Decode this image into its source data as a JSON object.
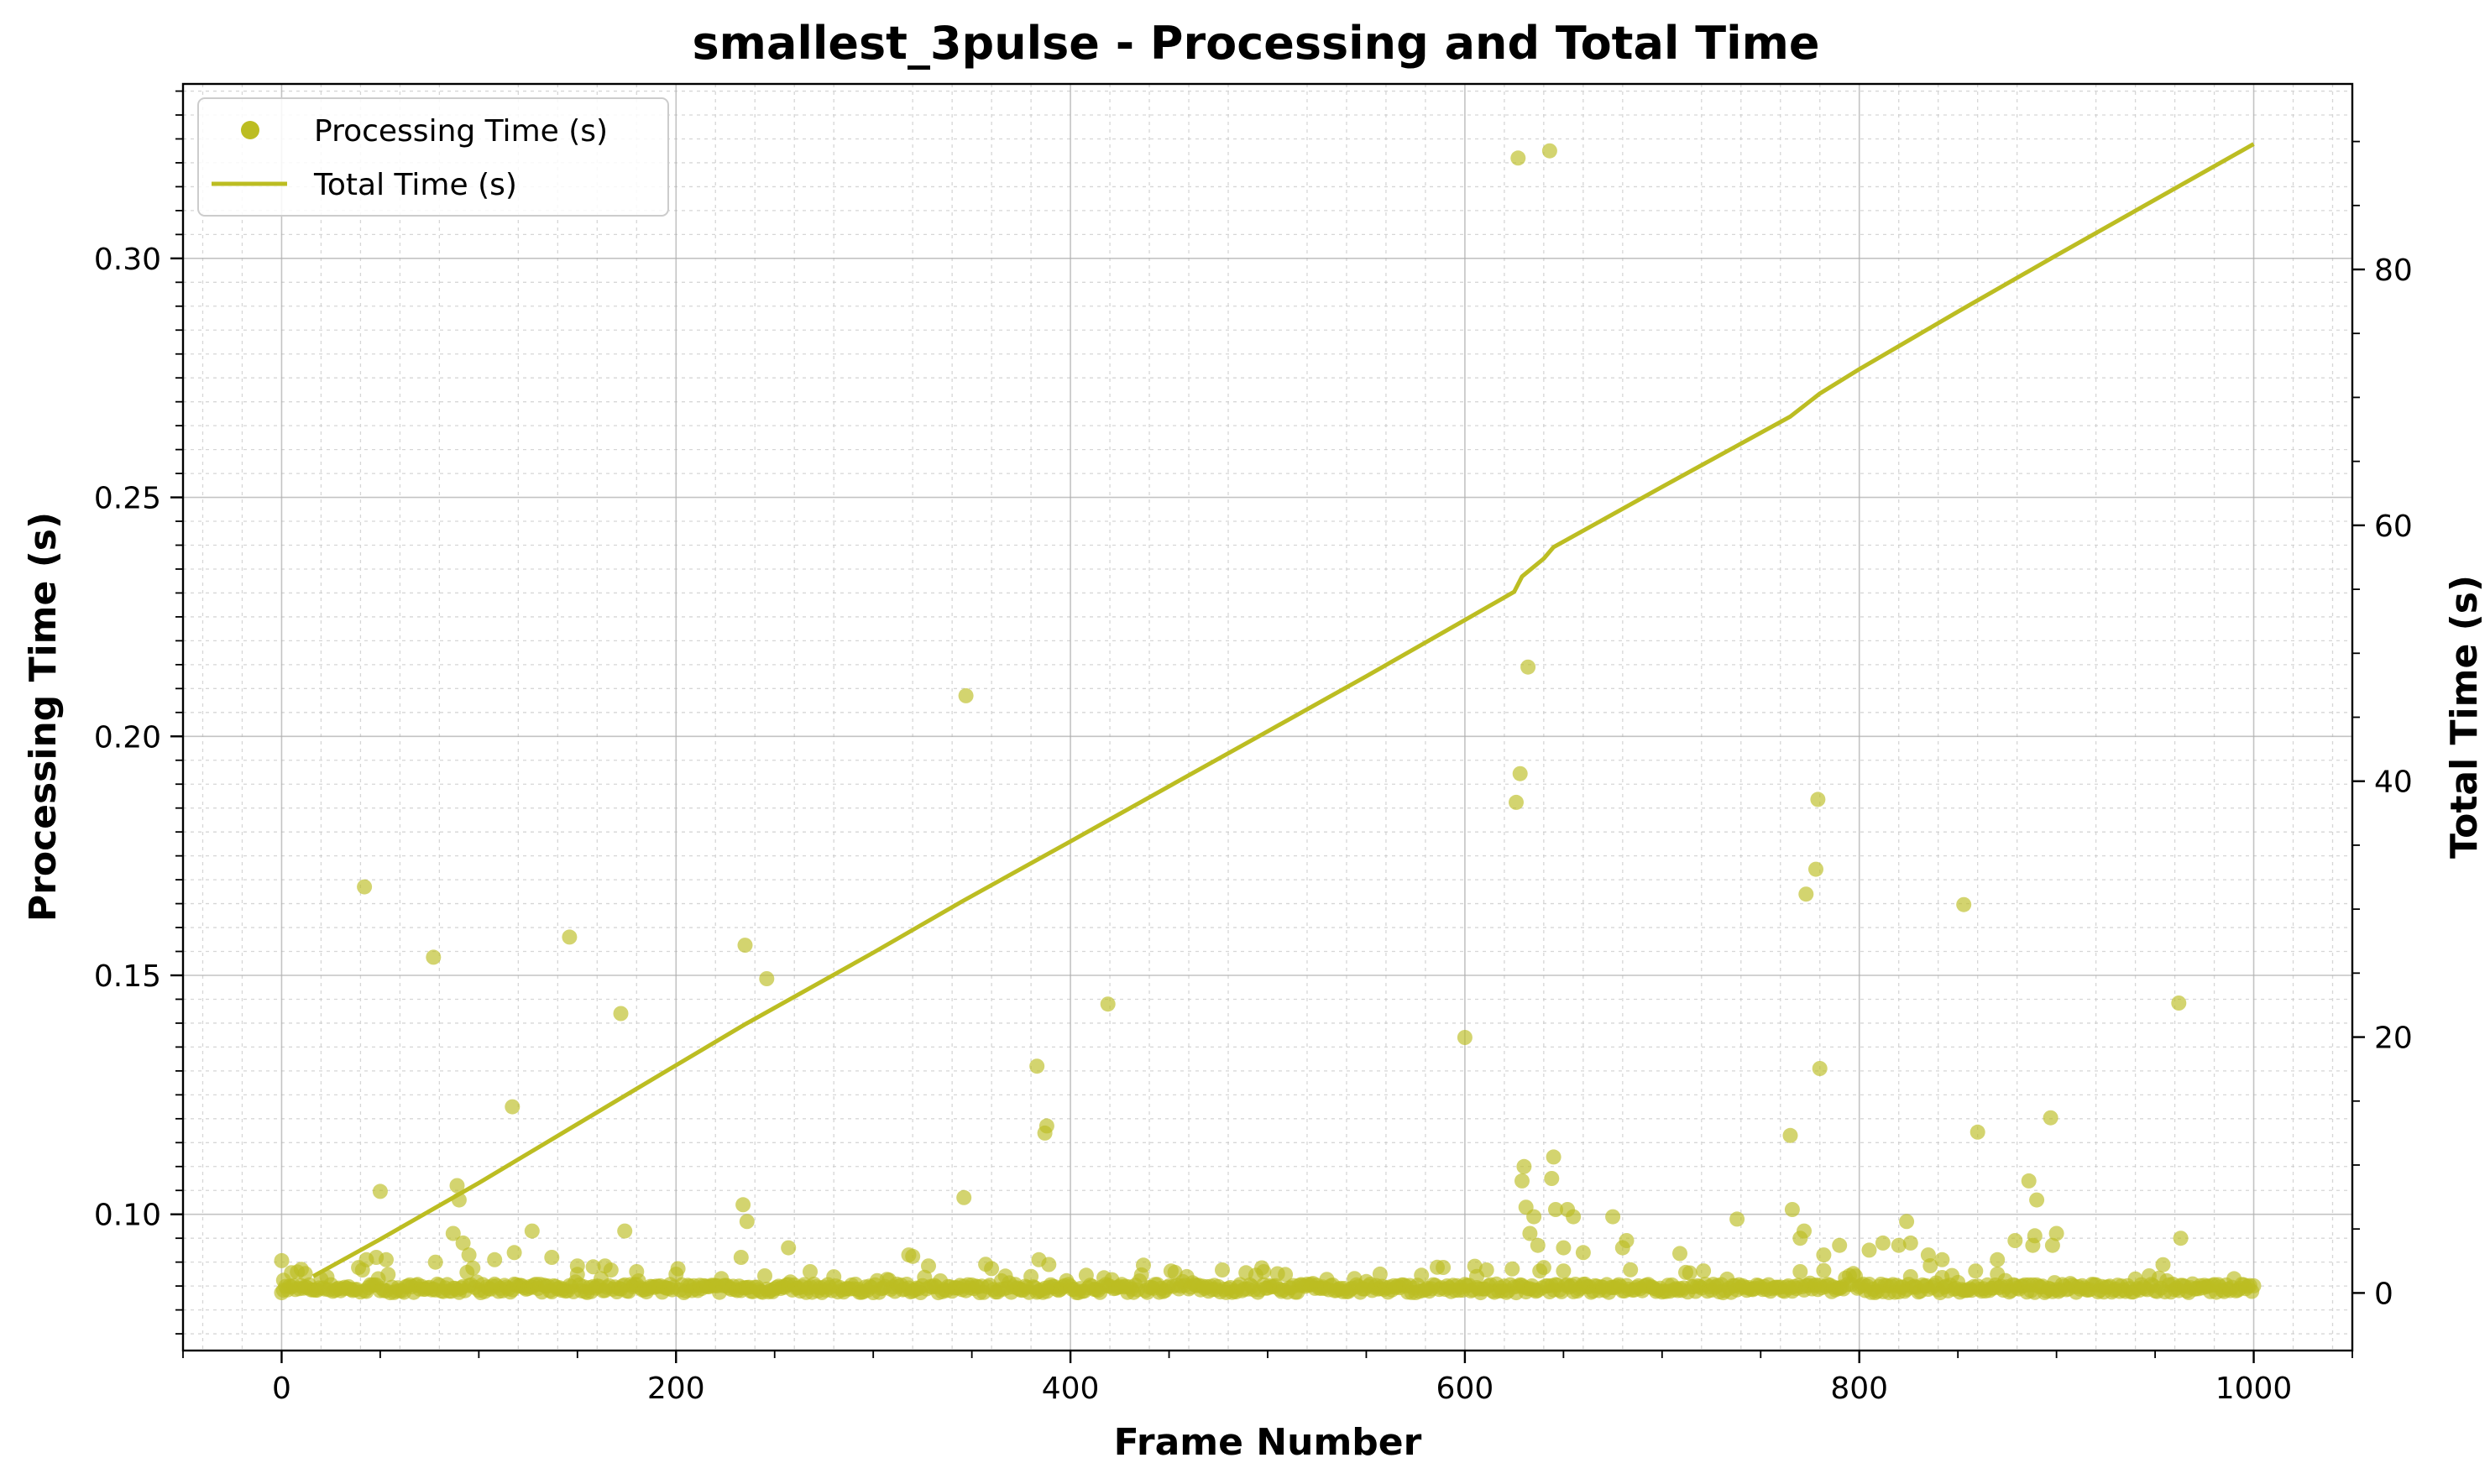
{
  "chart_data": {
    "type": "scatter",
    "title": "smallest_3pulse - Processing and Total Time",
    "xlabel": "Frame Number",
    "ylabel": "Processing Time (s)",
    "y2label": "Total Time (s)",
    "xlim": [
      -50,
      1050
    ],
    "ylim": [
      0.0715,
      0.3365
    ],
    "y2lim": [
      -4.5,
      94.5
    ],
    "xticks": [
      0,
      200,
      400,
      600,
      800,
      1000
    ],
    "yticks": [
      0.1,
      0.15,
      0.2,
      0.25,
      0.3
    ],
    "ytick_labels": [
      "0.10",
      "0.15",
      "0.20",
      "0.25",
      "0.30"
    ],
    "y2ticks": [
      0,
      20,
      40,
      60,
      80
    ],
    "grid": true,
    "legend_position": "top-left",
    "color": "#bcbd22",
    "baseline": 0.0845,
    "series": [
      {
        "name": "Processing Time (s)",
        "kind": "scatter",
        "axis": "left",
        "points": [
          [
            0,
            0.0903
          ],
          [
            1,
            0.0862
          ],
          [
            5,
            0.0878
          ],
          [
            10,
            0.0885
          ],
          [
            12,
            0.0876
          ],
          [
            42,
            0.1685
          ],
          [
            43,
            0.0905
          ],
          [
            48,
            0.091
          ],
          [
            50,
            0.1048
          ],
          [
            53,
            0.0905
          ],
          [
            77,
            0.1538
          ],
          [
            78,
            0.09
          ],
          [
            87,
            0.096
          ],
          [
            89,
            0.106
          ],
          [
            90,
            0.103
          ],
          [
            92,
            0.094
          ],
          [
            95,
            0.0915
          ],
          [
            108,
            0.0905
          ],
          [
            117,
            0.1225
          ],
          [
            118,
            0.092
          ],
          [
            127,
            0.0965
          ],
          [
            137,
            0.091
          ],
          [
            146,
            0.158
          ],
          [
            150,
            0.0892
          ],
          [
            158,
            0.089
          ],
          [
            164,
            0.0892
          ],
          [
            172,
            0.142
          ],
          [
            174,
            0.0965
          ],
          [
            180,
            0.088
          ],
          [
            233,
            0.091
          ],
          [
            234,
            0.102
          ],
          [
            235,
            0.1563
          ],
          [
            236,
            0.0985
          ],
          [
            246,
            0.1493
          ],
          [
            257,
            0.093
          ],
          [
            268,
            0.088
          ],
          [
            318,
            0.0915
          ],
          [
            320,
            0.0912
          ],
          [
            346,
            0.1035
          ],
          [
            347,
            0.2085
          ],
          [
            383,
            0.131
          ],
          [
            384,
            0.0905
          ],
          [
            387,
            0.117
          ],
          [
            388,
            0.1185
          ],
          [
            389,
            0.0895
          ],
          [
            419,
            0.144
          ],
          [
            498,
            0.088
          ],
          [
            557,
            0.0875
          ],
          [
            600,
            0.137
          ],
          [
            606,
            0.087
          ],
          [
            626,
            0.1862
          ],
          [
            627,
            0.321
          ],
          [
            628,
            0.1922
          ],
          [
            629,
            0.107
          ],
          [
            630,
            0.11
          ],
          [
            631,
            0.1015
          ],
          [
            632,
            0.2145
          ],
          [
            633,
            0.096
          ],
          [
            635,
            0.0995
          ],
          [
            637,
            0.0935
          ],
          [
            643,
            0.3225
          ],
          [
            644,
            0.1075
          ],
          [
            645,
            0.112
          ],
          [
            646,
            0.101
          ],
          [
            650,
            0.093
          ],
          [
            652,
            0.101
          ],
          [
            655,
            0.0995
          ],
          [
            660,
            0.092
          ],
          [
            675,
            0.0995
          ],
          [
            680,
            0.093
          ],
          [
            682,
            0.0945
          ],
          [
            709,
            0.0918
          ],
          [
            738,
            0.099
          ],
          [
            765,
            0.1165
          ],
          [
            766,
            0.101
          ],
          [
            770,
            0.095
          ],
          [
            772,
            0.0965
          ],
          [
            773,
            0.167
          ],
          [
            778,
            0.1722
          ],
          [
            779,
            0.1868
          ],
          [
            780,
            0.1305
          ],
          [
            782,
            0.0915
          ],
          [
            790,
            0.0935
          ],
          [
            805,
            0.0925
          ],
          [
            812,
            0.094
          ],
          [
            820,
            0.0935
          ],
          [
            824,
            0.0985
          ],
          [
            826,
            0.094
          ],
          [
            835,
            0.0915
          ],
          [
            842,
            0.0905
          ],
          [
            853,
            0.1648
          ],
          [
            860,
            0.1172
          ],
          [
            870,
            0.0905
          ],
          [
            879,
            0.0945
          ],
          [
            886,
            0.107
          ],
          [
            888,
            0.0935
          ],
          [
            889,
            0.0955
          ],
          [
            890,
            0.103
          ],
          [
            897,
            0.1202
          ],
          [
            898,
            0.0935
          ],
          [
            900,
            0.096
          ],
          [
            962,
            0.1442
          ],
          [
            963,
            0.095
          ]
        ]
      },
      {
        "name": "Total Time (s)",
        "kind": "line",
        "axis": "right",
        "points": [
          [
            16,
            1.3
          ],
          [
            50,
            4.2
          ],
          [
            100,
            8.6
          ],
          [
            150,
            13.2
          ],
          [
            200,
            17.8
          ],
          [
            235,
            21.0
          ],
          [
            300,
            26.6
          ],
          [
            345,
            30.6
          ],
          [
            400,
            35.3
          ],
          [
            450,
            39.6
          ],
          [
            500,
            43.9
          ],
          [
            550,
            48.2
          ],
          [
            600,
            52.6
          ],
          [
            625,
            54.8
          ],
          [
            629,
            56.0
          ],
          [
            640,
            57.4
          ],
          [
            645,
            58.3
          ],
          [
            700,
            63.0
          ],
          [
            765,
            68.5
          ],
          [
            780,
            70.3
          ],
          [
            800,
            72.2
          ],
          [
            850,
            76.7
          ],
          [
            900,
            81.1
          ],
          [
            1000,
            89.8
          ]
        ]
      }
    ]
  }
}
